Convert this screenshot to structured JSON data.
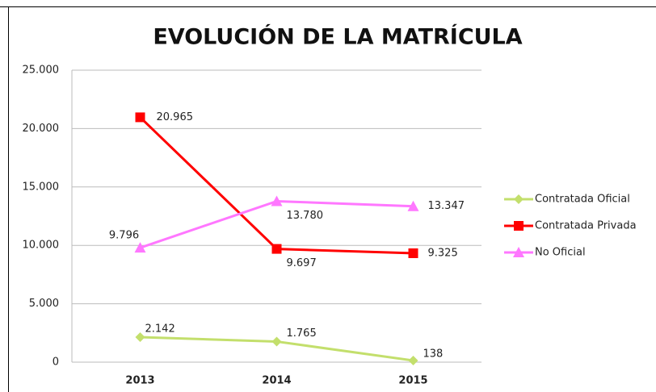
{
  "chart_data": {
    "type": "line",
    "title": "EVOLUCIÓN DE LA MATRÍCULA",
    "categories": [
      "2013",
      "2014",
      "2015"
    ],
    "series": [
      {
        "name": "Contratada Oficial",
        "color": "#c3df6c",
        "marker": "diamond",
        "values": [
          2142,
          1765,
          138
        ],
        "value_labels": [
          "2.142",
          "1.765",
          "138"
        ]
      },
      {
        "name": "Contratada Privada",
        "color": "#ff0000",
        "marker": "square",
        "values": [
          20965,
          9697,
          9325
        ],
        "value_labels": [
          "20.965",
          "9.697",
          "9.325"
        ]
      },
      {
        "name": "No Oficial",
        "color": "#ff77ff",
        "marker": "triangle",
        "values": [
          9796,
          13780,
          13347
        ],
        "value_labels": [
          "9.796",
          "13.780",
          "13.347"
        ]
      }
    ],
    "ylim": [
      0,
      25000
    ],
    "yticks": [
      0,
      {
        "value": 5000,
        "label": "5.000"
      },
      {
        "value": 10000,
        "label": "10.000"
      },
      {
        "value": 15000,
        "label": "15.000"
      },
      {
        "value": 20000,
        "label": "20.000"
      },
      {
        "value": 25000,
        "label": "25.000"
      }
    ],
    "grid": true,
    "legend": "right"
  }
}
